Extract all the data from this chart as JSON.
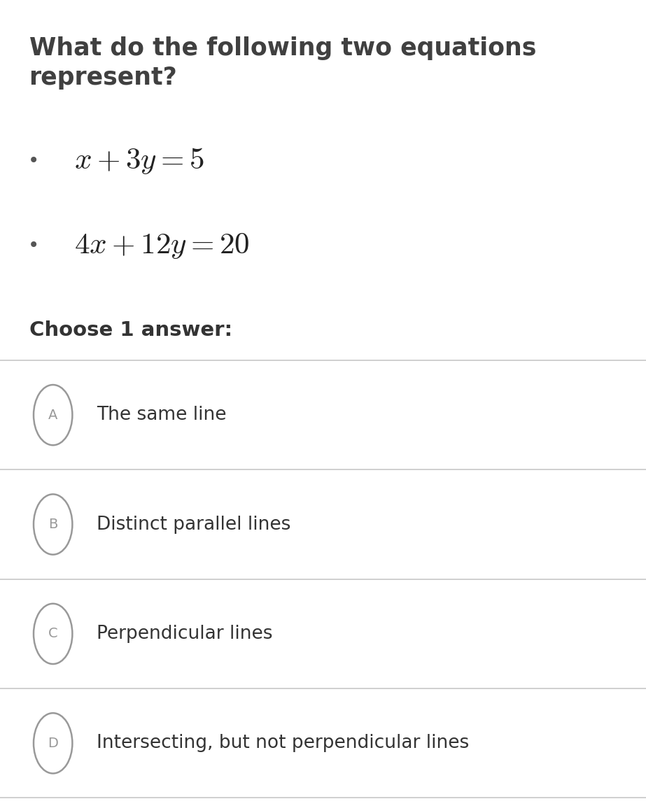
{
  "title_line1": "What do the following two equations",
  "title_line2": "represent?",
  "choose_label": "Choose 1 answer:",
  "options": [
    {
      "letter": "A",
      "text": "The same line"
    },
    {
      "letter": "B",
      "text": "Distinct parallel lines"
    },
    {
      "letter": "C",
      "text": "Perpendicular lines"
    },
    {
      "letter": "D",
      "text": "Intersecting, but not perpendicular lines"
    }
  ],
  "bg_color": "#ffffff",
  "title_color": "#404040",
  "eq_color": "#222222",
  "choose_color": "#333333",
  "option_text_color": "#333333",
  "circle_color": "#999999",
  "divider_color": "#cccccc",
  "bullet_color": "#555555"
}
